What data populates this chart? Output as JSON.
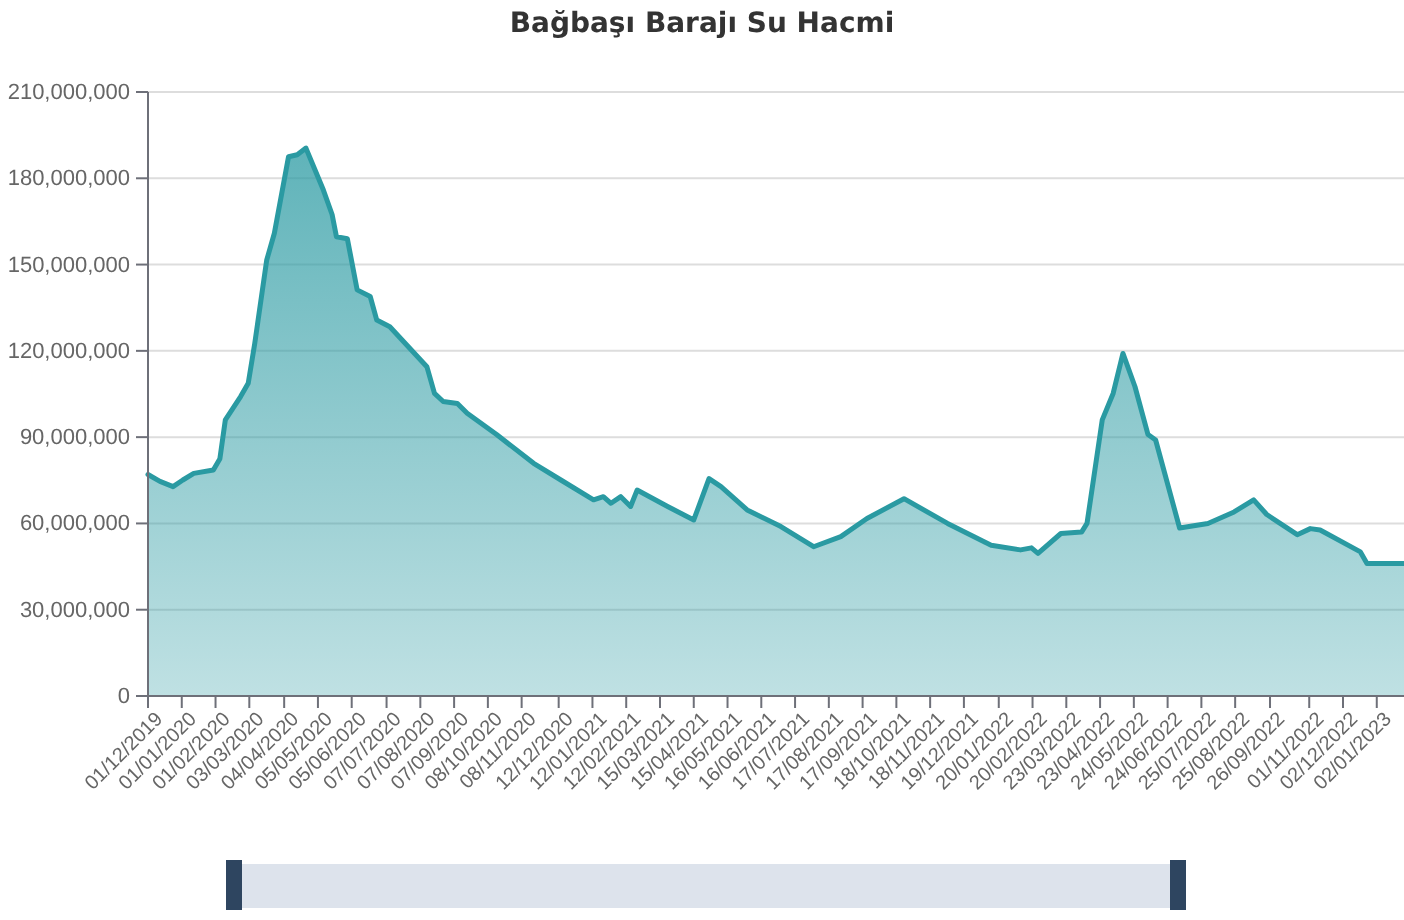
{
  "chart_data": {
    "type": "area",
    "title": "Bağbaşı Barajı Su Hacmi",
    "x": [
      "2019-12-01",
      "2019-12-12",
      "2019-12-24",
      "2020-01-02",
      "2020-01-12",
      "2020-01-30",
      "2020-02-05",
      "2020-02-10",
      "2020-02-24",
      "2020-03-02",
      "2020-03-08",
      "2020-03-19",
      "2020-03-26",
      "2020-04-08",
      "2020-04-16",
      "2020-04-24",
      "2020-05-01",
      "2020-05-10",
      "2020-05-18",
      "2020-05-22",
      "2020-06-01",
      "2020-06-10",
      "2020-06-22",
      "2020-06-28",
      "2020-07-10",
      "2020-08-13",
      "2020-08-20",
      "2020-08-28",
      "2020-09-10",
      "2020-09-19",
      "2020-10-16",
      "2020-11-19",
      "2020-12-14",
      "2021-01-13",
      "2021-01-22",
      "2021-01-29",
      "2021-02-07",
      "2021-02-16",
      "2021-02-22",
      "2021-03-22",
      "2021-04-15",
      "2021-04-29",
      "2021-05-10",
      "2021-06-03",
      "2021-07-04",
      "2021-08-03",
      "2021-08-28",
      "2021-09-21",
      "2021-10-25",
      "2021-12-04",
      "2022-01-13",
      "2022-02-09",
      "2022-02-19",
      "2022-02-25",
      "2022-03-18",
      "2022-04-06",
      "2022-04-11",
      "2022-04-25",
      "2022-05-05",
      "2022-05-14",
      "2022-05-25",
      "2022-06-06",
      "2022-06-13",
      "2022-07-05",
      "2022-07-31",
      "2022-08-24",
      "2022-09-11",
      "2022-09-23",
      "2022-10-21",
      "2022-11-02",
      "2022-11-11",
      "2022-12-18",
      "2022-12-24",
      "2023-01-27"
    ],
    "series": [
      {
        "color": "#2a9aa2",
        "values": [
          77000000,
          74600000,
          72800000,
          75100000,
          77400000,
          78600000,
          82500000,
          96000000,
          104100000,
          108700000,
          122600000,
          151600000,
          160900000,
          187500000,
          188200000,
          190500000,
          184100000,
          175900000,
          167400000,
          159700000,
          159000000,
          141200000,
          138900000,
          130700000,
          128400000,
          114500000,
          105200000,
          102400000,
          101700000,
          98300000,
          90900000,
          80900000,
          75100000,
          68200000,
          69300000,
          67000000,
          69300000,
          65900000,
          71600000,
          65900000,
          61200000,
          75600000,
          72800000,
          64700000,
          58900000,
          51900000,
          55400000,
          61700000,
          68600000,
          60000000,
          52400000,
          50800000,
          51500000,
          49600000,
          56500000,
          57000000,
          60000000,
          96000000,
          105200000,
          119100000,
          107600000,
          90900000,
          89000000,
          58400000,
          60000000,
          64000000,
          68200000,
          63100000,
          56100000,
          58200000,
          57700000,
          50100000,
          46100000,
          46100000
        ]
      }
    ],
    "xlim": [
      "2019-12-01",
      "2023-01-27"
    ],
    "xticks": [
      {
        "value": "2019-12-01",
        "label": "01/12/2019"
      },
      {
        "value": "2020-01-01",
        "label": "01/01/2020"
      },
      {
        "value": "2020-02-01",
        "label": "01/02/2020"
      },
      {
        "value": "2020-03-03",
        "label": "03/03/2020"
      },
      {
        "value": "2020-04-04",
        "label": "04/04/2020"
      },
      {
        "value": "2020-05-05",
        "label": "05/05/2020"
      },
      {
        "value": "2020-06-05",
        "label": "05/06/2020"
      },
      {
        "value": "2020-07-07",
        "label": "07/07/2020"
      },
      {
        "value": "2020-08-07",
        "label": "07/08/2020"
      },
      {
        "value": "2020-09-07",
        "label": "07/09/2020"
      },
      {
        "value": "2020-10-08",
        "label": "08/10/2020"
      },
      {
        "value": "2020-11-08",
        "label": "08/11/2020"
      },
      {
        "value": "2020-12-12",
        "label": "12/12/2020"
      },
      {
        "value": "2021-01-12",
        "label": "12/01/2021"
      },
      {
        "value": "2021-02-12",
        "label": "12/02/2021"
      },
      {
        "value": "2021-03-15",
        "label": "15/03/2021"
      },
      {
        "value": "2021-04-15",
        "label": "15/04/2021"
      },
      {
        "value": "2021-05-16",
        "label": "16/05/2021"
      },
      {
        "value": "2021-06-16",
        "label": "16/06/2021"
      },
      {
        "value": "2021-07-17",
        "label": "17/07/2021"
      },
      {
        "value": "2021-08-17",
        "label": "17/08/2021"
      },
      {
        "value": "2021-09-17",
        "label": "17/09/2021"
      },
      {
        "value": "2021-10-18",
        "label": "18/10/2021"
      },
      {
        "value": "2021-11-18",
        "label": "18/11/2021"
      },
      {
        "value": "2021-12-19",
        "label": "19/12/2021"
      },
      {
        "value": "2022-01-20",
        "label": "20/01/2022"
      },
      {
        "value": "2022-02-20",
        "label": "20/02/2022"
      },
      {
        "value": "2022-03-23",
        "label": "23/03/2022"
      },
      {
        "value": "2022-04-23",
        "label": "23/04/2022"
      },
      {
        "value": "2022-05-24",
        "label": "24/05/2022"
      },
      {
        "value": "2022-06-24",
        "label": "24/06/2022"
      },
      {
        "value": "2022-07-25",
        "label": "25/07/2022"
      },
      {
        "value": "2022-08-25",
        "label": "25/08/2022"
      },
      {
        "value": "2022-09-26",
        "label": "26/09/2022"
      },
      {
        "value": "2022-11-01",
        "label": "01/11/2022"
      },
      {
        "value": "2022-12-02",
        "label": "02/12/2022"
      },
      {
        "value": "2023-01-02",
        "label": "02/01/2023"
      }
    ],
    "ylim": [
      0,
      210000000
    ],
    "yticks": [
      0,
      {
        "value": 30000000,
        "label": "30,000,000"
      },
      {
        "value": 60000000,
        "label": "60,000,000"
      },
      {
        "value": 90000000,
        "label": "90,000,000"
      },
      {
        "value": 120000000,
        "label": "120,000,000"
      },
      {
        "value": 150000000,
        "label": "150,000,000"
      },
      {
        "value": 180000000,
        "label": "180,000,000"
      },
      {
        "value": 210000000,
        "label": "210,000,000"
      }
    ],
    "grid": "y"
  }
}
